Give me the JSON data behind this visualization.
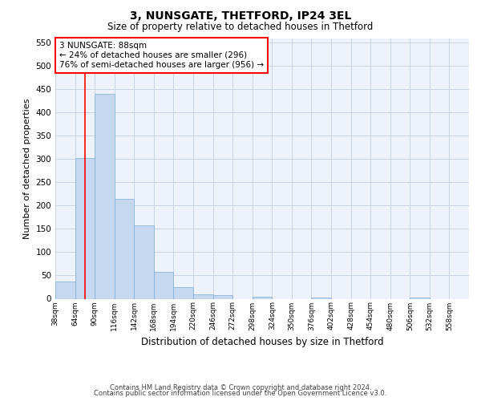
{
  "title": "3, NUNSGATE, THETFORD, IP24 3EL",
  "subtitle": "Size of property relative to detached houses in Thetford",
  "xlabel": "Distribution of detached houses by size in Thetford",
  "ylabel": "Number of detached properties",
  "footnote1": "Contains HM Land Registry data © Crown copyright and database right 2024.",
  "footnote2": "Contains public sector information licensed under the Open Government Licence v3.0.",
  "bar_color": "#c5d8f0",
  "bar_edge_color": "#7aadd4",
  "bar_values": [
    37,
    303,
    440,
    215,
    157,
    58,
    25,
    10,
    8,
    0,
    5,
    0,
    0,
    3,
    0,
    0,
    0,
    0,
    3,
    0,
    0
  ],
  "tick_labels": [
    "38sqm",
    "64sqm",
    "90sqm",
    "116sqm",
    "142sqm",
    "168sqm",
    "194sqm",
    "220sqm",
    "246sqm",
    "272sqm",
    "298sqm",
    "324sqm",
    "350sqm",
    "376sqm",
    "402sqm",
    "428sqm",
    "454sqm",
    "480sqm",
    "506sqm",
    "532sqm",
    "558sqm"
  ],
  "ylim": [
    0,
    560
  ],
  "yticks": [
    0,
    50,
    100,
    150,
    200,
    250,
    300,
    350,
    400,
    450,
    500,
    550
  ],
  "red_line_x": 1.5,
  "annotation_text": "3 NUNSGATE: 88sqm\n← 24% of detached houses are smaller (296)\n76% of semi-detached houses are larger (956) →",
  "grid_color": "#c8d4e8",
  "background_color": "#eef2fa"
}
